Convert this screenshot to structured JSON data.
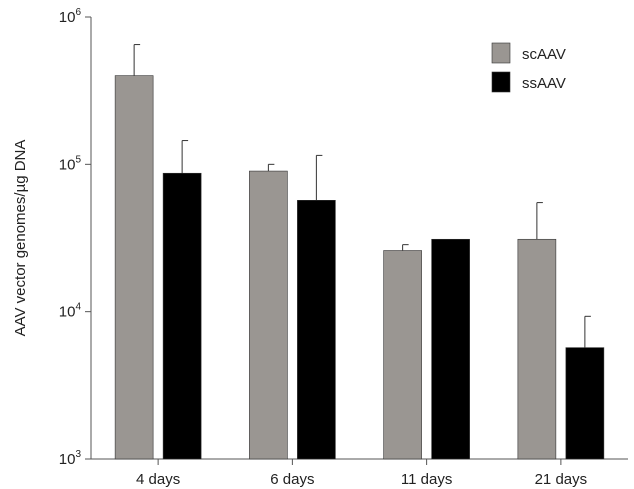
{
  "chart_data": {
    "type": "bar",
    "scale": "log",
    "title": "",
    "xlabel": "",
    "ylabel": "AAV vector genomes/µg DNA",
    "ylim": [
      1000,
      1000000
    ],
    "yticks": [
      {
        "value": 1000,
        "base": "10",
        "exp": "3"
      },
      {
        "value": 10000,
        "base": "10",
        "exp": "4"
      },
      {
        "value": 100000,
        "base": "10",
        "exp": "5"
      },
      {
        "value": 1000000,
        "base": "10",
        "exp": "6"
      }
    ],
    "categories": [
      "4 days",
      "6 days",
      "11 days",
      "21 days"
    ],
    "series": [
      {
        "name": "scAAV",
        "color": "#9a9692",
        "values": [
          400000,
          90000,
          26000,
          31000
        ],
        "error_upper": [
          650000,
          100000,
          28500,
          55000
        ]
      },
      {
        "name": "ssAAV",
        "color": "#000000",
        "values": [
          87000,
          57000,
          31000,
          5700
        ],
        "error_upper": [
          145000,
          115000,
          null,
          9300
        ]
      }
    ],
    "legend_position": "top-right",
    "grid": false
  }
}
